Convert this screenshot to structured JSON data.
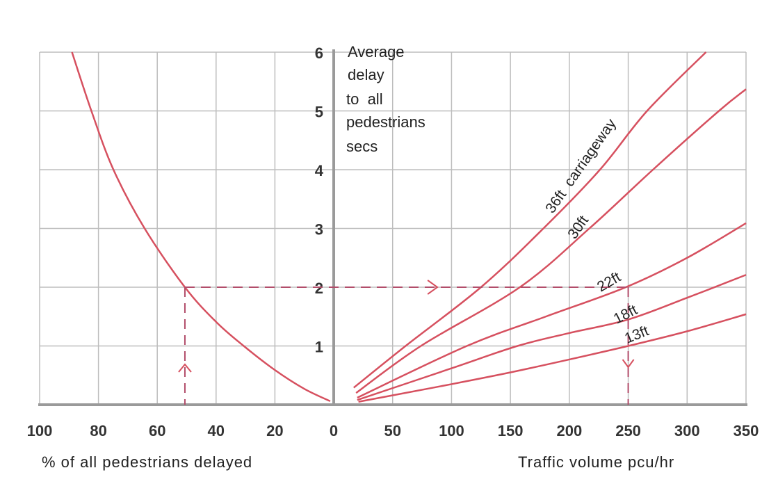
{
  "chart_data": [
    {
      "type": "line",
      "panel": "left",
      "xlabel": "% of all pedestrians delayed",
      "x_ticks": [
        "100",
        "80",
        "60",
        "40",
        "20",
        "0"
      ],
      "xlim": [
        100,
        0
      ],
      "ylim": [
        0,
        6
      ],
      "grid": true,
      "series": [
        {
          "x": [
            89,
            82.4,
            74.9,
            64.3,
            50.6,
            40,
            30.6,
            20,
            10,
            1.2
          ],
          "y": [
            6,
            5,
            4,
            3,
            2,
            1.41,
            1,
            0.59,
            0.27,
            0.06
          ]
        }
      ],
      "guide": {
        "x": 50.6,
        "y": 2
      }
    },
    {
      "type": "line",
      "panel": "right",
      "xlabel": "Traffic volume pcu/hr",
      "ylabel": "Average delay to all pedestrians secs",
      "ylabel_lines": [
        "Average",
        "delay",
        "to  all",
        "pedestrians",
        "secs"
      ],
      "x_ticks": [
        "0",
        "50",
        "100",
        "150",
        "200",
        "250",
        "300",
        "350"
      ],
      "y_ticks": [
        "1",
        "2",
        "3",
        "4",
        "5",
        "6"
      ],
      "xlim": [
        0,
        350
      ],
      "ylim": [
        0,
        6
      ],
      "grid": true,
      "series": [
        {
          "name": "36ft  carriageway",
          "x": [
            17,
            61,
            125,
            178,
            226,
            266,
            316
          ],
          "y": [
            0.29,
            1,
            2,
            3,
            4,
            5,
            6
          ]
        },
        {
          "name": "30ft",
          "x": [
            19,
            74,
            158,
            217,
            271,
            327,
            350
          ],
          "y": [
            0.2,
            1,
            2,
            3,
            4,
            5,
            5.37
          ]
        },
        {
          "name": "22ft",
          "x": [
            20,
            113,
            180,
            248,
            300,
            350
          ],
          "y": [
            0.12,
            1,
            1.5,
            2,
            2.5,
            3.09
          ]
        },
        {
          "name": "18ft",
          "x": [
            20,
            100,
            156,
            200,
            250,
            300,
            350
          ],
          "y": [
            0.08,
            0.62,
            1,
            1.22,
            1.45,
            1.82,
            2.21
          ]
        },
        {
          "name": "13ft",
          "x": [
            21,
            50,
            100,
            150,
            200,
            250,
            300,
            350
          ],
          "y": [
            0.05,
            0.16,
            0.35,
            0.55,
            0.77,
            1.0,
            1.25,
            1.54
          ]
        }
      ],
      "guide": {
        "x": 250,
        "y": 2
      }
    }
  ],
  "colors": {
    "curve": "#d6505f",
    "guide": "#b24d6a",
    "grid": "#bdbdbd",
    "axis": "#9a9a9a"
  }
}
